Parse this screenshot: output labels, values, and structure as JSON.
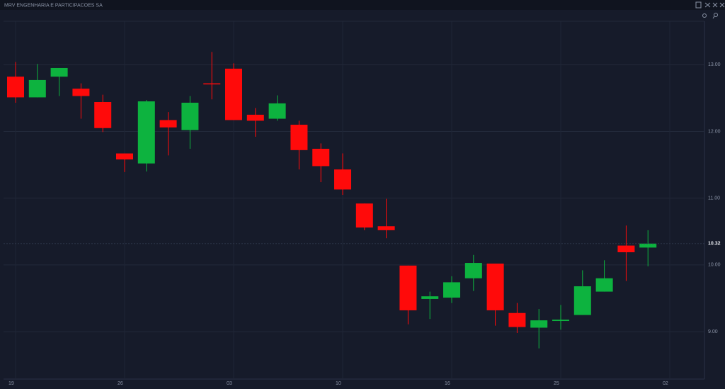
{
  "chart_data": {
    "type": "candlestick",
    "title": "MRV ENGENHARIA E PARTICIPACOES SA",
    "categories": [
      "19",
      null,
      null,
      null,
      null,
      "26",
      null,
      null,
      null,
      null,
      "03",
      null,
      null,
      null,
      null,
      "10",
      null,
      null,
      null,
      null,
      "16",
      null,
      null,
      null,
      null,
      "25",
      null,
      null,
      null,
      null,
      "02"
    ],
    "open": [
      12.82,
      12.51,
      12.82,
      12.64,
      12.44,
      11.67,
      11.52,
      12.17,
      12.02,
      12.72,
      12.94,
      12.25,
      12.19,
      12.1,
      11.74,
      11.43,
      10.92,
      10.58,
      9.99,
      9.49,
      9.51,
      9.8,
      10.02,
      9.28,
      9.06,
      9.16,
      9.25,
      9.6,
      10.29,
      10.26,
      null
    ],
    "high": [
      13.04,
      13.01,
      12.95,
      12.72,
      12.55,
      11.67,
      12.47,
      12.29,
      12.53,
      13.19,
      13.02,
      12.35,
      12.54,
      12.16,
      11.82,
      11.67,
      10.92,
      10.99,
      9.99,
      9.6,
      9.83,
      10.15,
      10.02,
      9.43,
      9.34,
      9.4,
      9.92,
      10.07,
      10.59,
      10.52,
      null
    ],
    "low": [
      12.43,
      12.51,
      12.53,
      12.19,
      11.99,
      11.39,
      11.4,
      11.64,
      11.74,
      12.48,
      12.17,
      11.92,
      12.16,
      11.43,
      11.24,
      11.05,
      10.52,
      10.4,
      9.11,
      9.19,
      9.43,
      9.61,
      9.09,
      8.98,
      8.75,
      9.03,
      9.25,
      9.6,
      9.76,
      9.98,
      null
    ],
    "close": [
      12.51,
      12.77,
      12.95,
      12.53,
      12.05,
      11.58,
      12.45,
      12.06,
      12.43,
      12.71,
      12.17,
      12.16,
      12.42,
      11.72,
      11.48,
      11.13,
      10.56,
      10.52,
      9.32,
      9.53,
      9.74,
      10.03,
      9.32,
      9.07,
      9.17,
      9.18,
      9.68,
      9.8,
      10.19,
      10.32,
      null
    ],
    "up_color": "#0db33f",
    "down_color": "#ff0a0a",
    "ylim": [
      8.29,
      13.65
    ],
    "yticks": [
      {
        "value": 9,
        "label": "9.00"
      },
      {
        "value": 10,
        "label": "10.00"
      },
      {
        "value": 11,
        "label": "11.00"
      },
      {
        "value": 12,
        "label": "12.00"
      },
      {
        "value": 13,
        "label": "13.00"
      }
    ],
    "last_price": {
      "value": 10.32,
      "label": "10.32"
    },
    "grid": true
  }
}
